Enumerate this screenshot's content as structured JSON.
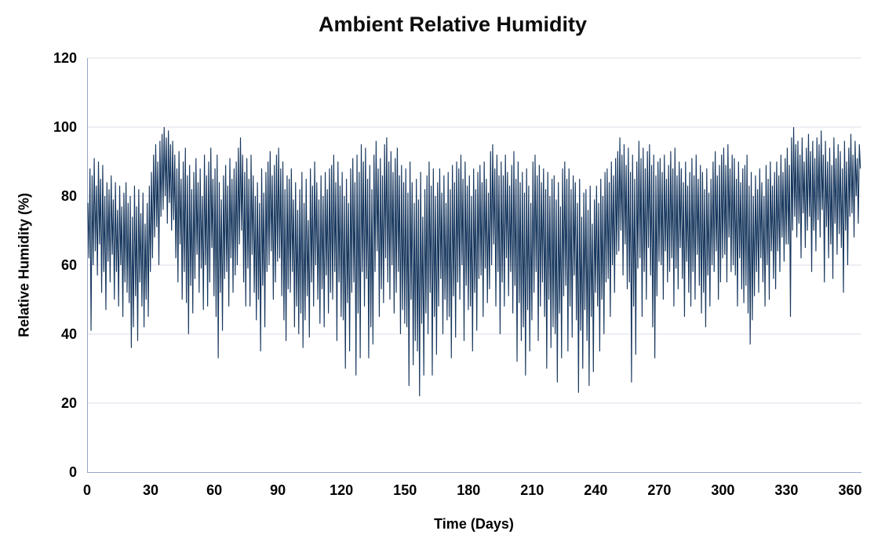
{
  "page": {
    "background": "#ffffff"
  },
  "chart_data": {
    "type": "line",
    "title": "Ambient Relative Humidity",
    "xlabel": "Time (Days)",
    "ylabel": "Relative Humidity (%)",
    "xlim": [
      0,
      365
    ],
    "ylim": [
      0,
      120
    ],
    "xticks": [
      0,
      30,
      60,
      90,
      120,
      150,
      180,
      210,
      240,
      270,
      300,
      330,
      360
    ],
    "yticks": [
      0,
      20,
      40,
      60,
      80,
      100,
      120
    ],
    "grid": "horizontal",
    "legend": "none",
    "line_color": "#17375E",
    "grid_color": "#dcdee9",
    "axis_color": "#98a5c6",
    "series": [
      {
        "name": "Ambient Relative Humidity",
        "x_start": 0,
        "x_step_days": 0.5,
        "values": [
          78,
          62,
          88,
          41,
          86,
          60,
          91,
          64,
          83,
          57,
          90,
          66,
          85,
          52,
          89,
          58,
          80,
          47,
          84,
          61,
          82,
          55,
          86,
          63,
          79,
          50,
          84,
          58,
          76,
          48,
          83,
          60,
          77,
          45,
          81,
          55,
          84,
          52,
          78,
          49,
          80,
          36,
          74,
          42,
          83,
          51,
          77,
          38,
          82,
          55,
          75,
          48,
          81,
          42,
          72,
          50,
          78,
          45,
          83,
          58,
          87,
          62,
          92,
          68,
          95,
          71,
          90,
          60,
          96,
          74,
          98,
          76,
          100,
          80,
          97,
          72,
          99,
          78,
          95,
          70,
          96,
          73,
          92,
          62,
          88,
          55,
          93,
          66,
          85,
          50,
          90,
          58,
          94,
          49,
          86,
          40,
          89,
          54,
          82,
          46,
          87,
          56,
          91,
          63,
          84,
          52,
          88,
          59,
          80,
          47,
          92,
          60,
          86,
          48,
          90,
          55,
          94,
          65,
          85,
          51,
          88,
          45,
          92,
          33,
          84,
          52,
          79,
          41,
          86,
          56,
          89,
          58,
          83,
          48,
          91,
          62,
          85,
          52,
          88,
          57,
          90,
          60,
          94,
          66,
          97,
          70,
          92,
          55,
          87,
          48,
          91,
          59,
          85,
          48,
          92,
          63,
          86,
          52,
          80,
          44,
          84,
          50,
          78,
          35,
          88,
          54,
          81,
          42,
          87,
          58,
          90,
          60,
          93,
          64,
          86,
          50,
          89,
          55,
          92,
          61,
          94,
          62,
          88,
          51,
          90,
          44,
          82,
          38,
          86,
          53,
          85,
          52,
          88,
          58,
          79,
          42,
          84,
          48,
          76,
          40,
          82,
          46,
          87,
          36,
          78,
          44,
          85,
          51,
          73,
          39,
          88,
          55,
          83,
          48,
          90,
          60,
          84,
          50,
          79,
          43,
          86,
          53,
          80,
          42,
          87,
          57,
          82,
          46,
          88,
          52,
          89,
          50,
          92,
          58,
          84,
          38,
          90,
          55,
          83,
          45,
          87,
          44,
          80,
          30,
          85,
          49,
          78,
          35,
          88,
          52,
          91,
          55,
          84,
          28,
          92,
          46,
          87,
          33,
          95,
          58,
          90,
          48,
          94,
          56,
          85,
          33,
          89,
          42,
          82,
          37,
          92,
          58,
          96,
          64,
          88,
          45,
          91,
          53,
          86,
          49,
          95,
          62,
          97,
          55,
          90,
          50,
          93,
          60,
          87,
          46,
          91,
          52,
          94,
          58,
          86,
          40,
          89,
          47,
          84,
          43,
          88,
          42,
          81,
          25,
          90,
          50,
          84,
          31,
          78,
          38,
          85,
          35,
          79,
          22,
          87,
          43,
          74,
          28,
          82,
          46,
          86,
          40,
          90,
          52,
          83,
          28,
          88,
          45,
          80,
          34,
          84,
          48,
          88,
          56,
          81,
          40,
          86,
          50,
          78,
          44,
          87,
          45,
          82,
          33,
          89,
          51,
          84,
          39,
          90,
          55,
          88,
          50,
          92,
          60,
          85,
          38,
          90,
          54,
          83,
          47,
          86,
          48,
          80,
          35,
          88,
          52,
          82,
          41,
          87,
          56,
          89,
          57,
          84,
          45,
          90,
          59,
          85,
          49,
          81,
          53,
          93,
          60,
          95,
          66,
          88,
          48,
          92,
          58,
          86,
          40,
          90,
          55,
          86,
          48,
          92,
          62,
          87,
          51,
          83,
          58,
          89,
          46,
          93,
          54,
          85,
          32,
          90,
          49,
          84,
          38,
          87,
          42,
          81,
          28,
          88,
          47,
          83,
          35,
          78,
          44,
          90,
          52,
          92,
          58,
          86,
          38,
          89,
          48,
          84,
          55,
          88,
          45,
          82,
          30,
          87,
          50,
          80,
          36,
          85,
          42,
          86,
          40,
          79,
          26,
          84,
          46,
          77,
          33,
          88,
          51,
          90,
          54,
          85,
          35,
          88,
          48,
          82,
          39,
          86,
          57,
          84,
          44,
          78,
          23,
          85,
          41,
          74,
          30,
          81,
          47,
          82,
          38,
          76,
          25,
          83,
          45,
          72,
          29,
          79,
          52,
          83,
          48,
          78,
          35,
          85,
          50,
          80,
          40,
          87,
          55,
          88,
          56,
          84,
          45,
          90,
          60,
          86,
          52,
          91,
          63,
          93,
          64,
          97,
          70,
          92,
          57,
          95,
          66,
          89,
          53,
          94,
          55,
          87,
          26,
          92,
          48,
          85,
          34,
          90,
          59,
          96,
          62,
          91,
          45,
          94,
          58,
          88,
          50,
          93,
          65,
          95,
          57,
          89,
          42,
          92,
          33,
          86,
          51,
          90,
          61,
          91,
          60,
          87,
          50,
          92,
          64,
          85,
          55,
          89,
          58,
          93,
          62,
          88,
          48,
          94,
          59,
          86,
          53,
          90,
          65,
          88,
          56,
          84,
          45,
          90,
          61,
          83,
          52,
          87,
          48,
          91,
          58,
          86,
          50,
          92,
          63,
          85,
          54,
          89,
          46,
          87,
          52,
          82,
          42,
          88,
          57,
          81,
          48,
          85,
          60,
          90,
          58,
          93,
          64,
          86,
          50,
          89,
          55,
          92,
          62,
          94,
          63,
          89,
          55,
          95,
          68,
          88,
          58,
          92,
          60,
          91,
          57,
          85,
          48,
          90,
          62,
          84,
          53,
          88,
          49,
          89,
          54,
          92,
          46,
          83,
          37,
          87,
          44,
          80,
          51,
          86,
          58,
          82,
          52,
          88,
          62,
          84,
          55,
          80,
          48,
          89,
          60,
          85,
          50,
          90,
          64,
          83,
          56,
          87,
          53,
          90,
          64,
          86,
          58,
          92,
          68,
          87,
          61,
          91,
          66,
          94,
          66,
          89,
          45,
          97,
          70,
          100,
          74,
          95,
          68,
          96,
          72,
          92,
          62,
          97,
          75,
          90,
          65,
          94,
          70,
          98,
          74,
          93,
          58,
          96,
          70,
          91,
          64,
          97,
          73,
          95,
          68,
          99,
          76,
          92,
          55,
          96,
          71,
          90,
          62,
          94,
          66,
          89,
          56,
          97,
          72,
          91,
          63,
          95,
          69,
          93,
          65,
          88,
          52,
          96,
          70,
          90,
          60,
          94,
          74,
          98,
          75,
          92,
          68,
          96,
          80,
          91,
          72,
          95,
          88
        ]
      }
    ]
  }
}
